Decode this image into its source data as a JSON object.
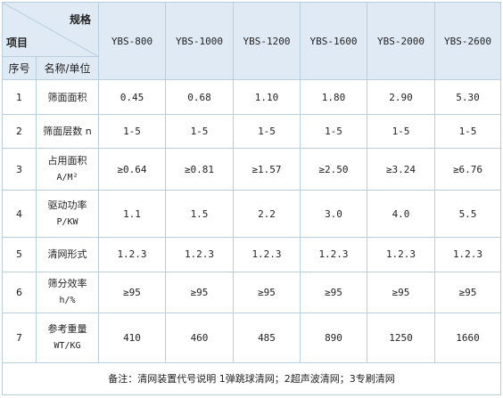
{
  "header": {
    "spec_label": "规格",
    "item_label": "项目",
    "index_label": "序号",
    "name_unit_label": "名称/单位",
    "models": [
      "YBS-800",
      "YBS-1000",
      "YBS-1200",
      "YBS-1600",
      "YBS-2000",
      "YBS-2600"
    ]
  },
  "rows": [
    {
      "no": "1",
      "name": "筛面面积",
      "unit": "",
      "values": [
        "0.45",
        "0.68",
        "1.10",
        "1.80",
        "2.90",
        "5.30"
      ]
    },
    {
      "no": "2",
      "name": "筛面层数 n",
      "unit": "",
      "values": [
        "1-5",
        "1-5",
        "1-5",
        "1-5",
        "1-5",
        "1-5"
      ]
    },
    {
      "no": "3",
      "name": "占用面积",
      "unit": "A/M²",
      "values": [
        "≥0.64",
        "≥0.81",
        "≥1.57",
        "≥2.50",
        "≥3.24",
        "≥6.76"
      ]
    },
    {
      "no": "4",
      "name": "驱动功率",
      "unit": "P/KW",
      "values": [
        "1.1",
        "1.5",
        "2.2",
        "3.0",
        "4.0",
        "5.5"
      ]
    },
    {
      "no": "5",
      "name": "清网形式",
      "unit": "",
      "values": [
        "1.2.3",
        "1.2.3",
        "1.2.3",
        "1.2.3",
        "1.2.3",
        "1.2.3"
      ]
    },
    {
      "no": "6",
      "name": "筛分效率",
      "unit": "h/%",
      "values": [
        "≥95",
        "≥95",
        "≥95",
        "≥95",
        "≥95",
        "≥95"
      ]
    },
    {
      "no": "7",
      "name": "参考重量",
      "unit": "WT/KG",
      "values": [
        "410",
        "460",
        "485",
        "890",
        "1250",
        "1660"
      ]
    }
  ],
  "remark": "备注：清网装置代号说明 1弹跳球清网；2超声波清网；3专刷清网"
}
